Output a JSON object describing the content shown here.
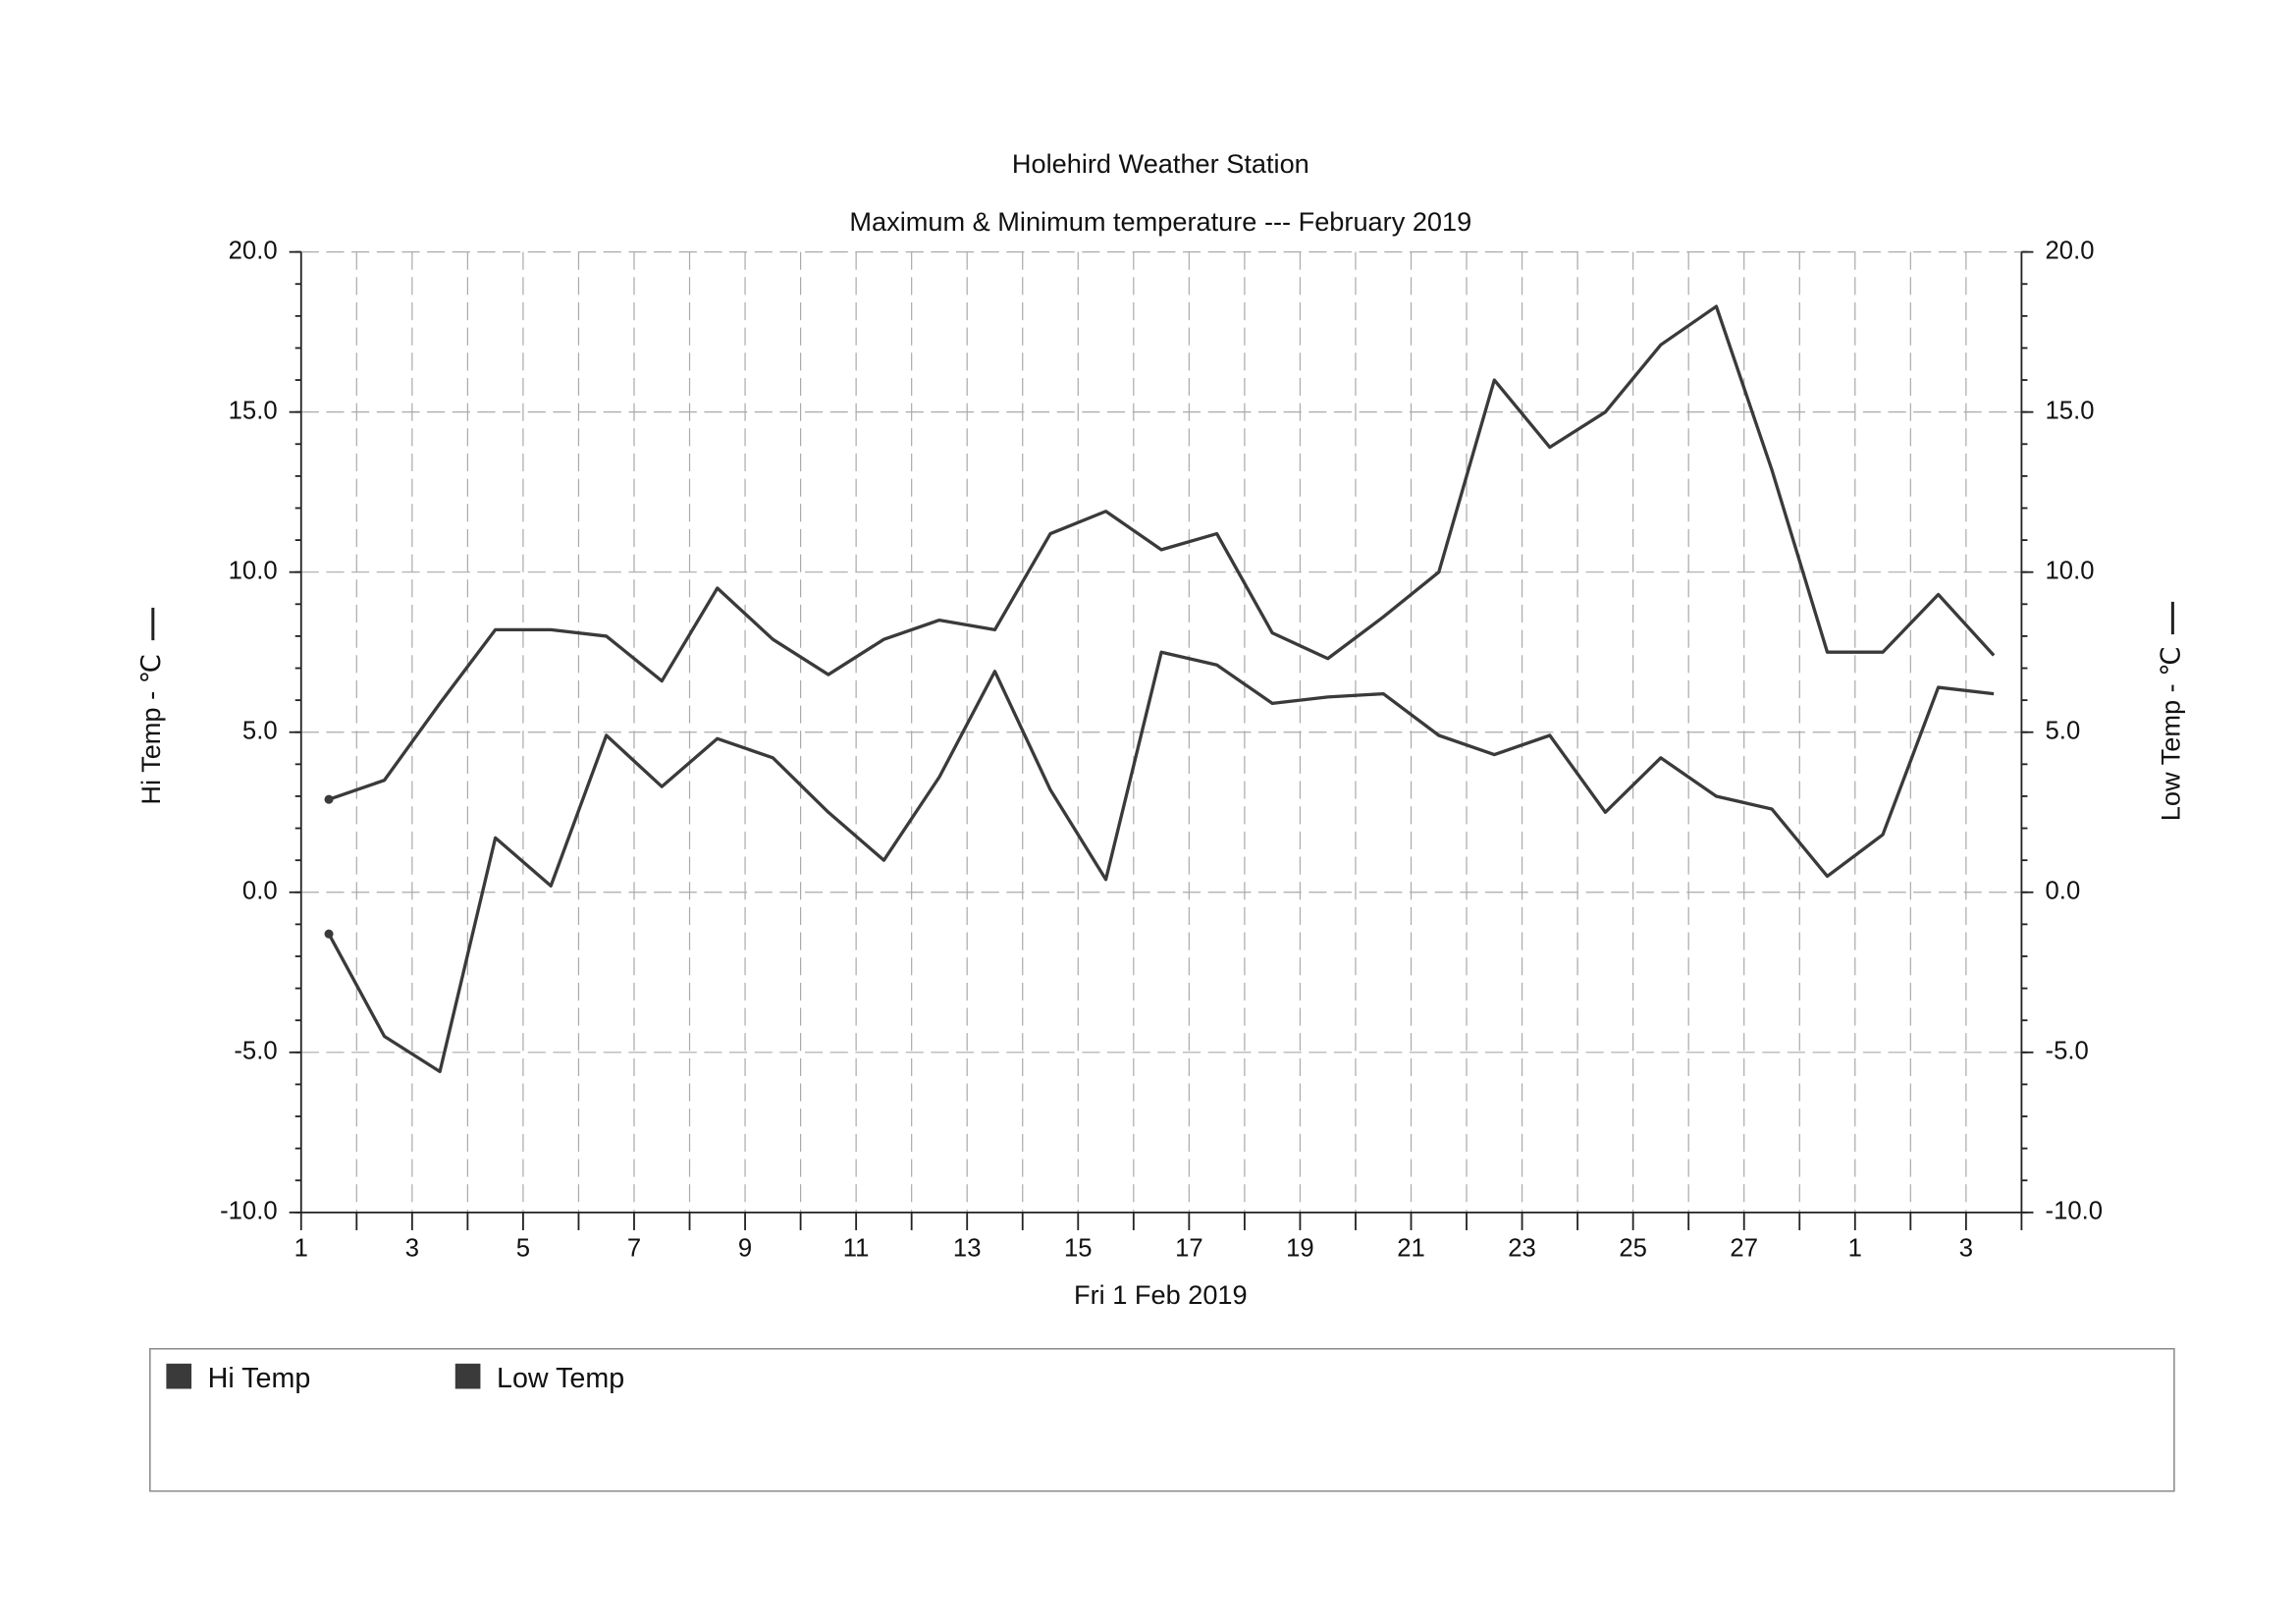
{
  "chart_data": {
    "type": "line",
    "title": "Holehird Weather Station",
    "subtitle": "Maximum & Minimum temperature --- February 2019",
    "xlabel": "Fri 1 Feb 2019",
    "ylabel": "Hi Temp - ℃",
    "y2label": "Low Temp - ℃",
    "x": [
      1.5,
      2.5,
      3.5,
      4.5,
      5.5,
      6.5,
      7.5,
      8.5,
      9.5,
      10.5,
      11.5,
      12.5,
      13.5,
      14.5,
      15.5,
      16.5,
      17.5,
      18.5,
      19.5,
      20.5,
      21.5,
      22.5,
      23.5,
      24.5,
      25.5,
      26.5,
      27.5,
      28.5,
      29.5,
      30.5,
      31.5
    ],
    "series": [
      {
        "name": "Hi Temp",
        "color": "#3a3a3a",
        "axis": "y",
        "values": [
          2.9,
          3.5,
          5.9,
          8.2,
          8.2,
          8.0,
          6.6,
          9.5,
          7.9,
          6.8,
          7.9,
          8.5,
          8.2,
          11.2,
          11.9,
          10.7,
          11.2,
          8.1,
          7.3,
          8.6,
          10.0,
          16.0,
          13.9,
          15.0,
          17.1,
          18.3,
          13.2,
          7.5,
          7.5,
          9.3,
          7.4
        ]
      },
      {
        "name": "Low Temp",
        "color": "#3a3a3a",
        "axis": "y2",
        "values": [
          -1.3,
          -4.5,
          -5.6,
          1.7,
          0.2,
          4.9,
          3.3,
          4.8,
          4.2,
          2.5,
          1.0,
          3.6,
          6.9,
          3.2,
          0.4,
          7.5,
          7.1,
          5.9,
          6.1,
          6.2,
          4.9,
          4.3,
          4.9,
          2.5,
          4.2,
          3.0,
          2.6,
          0.5,
          1.8,
          6.4,
          6.2
        ]
      }
    ],
    "xlim": [
      1,
      32
    ],
    "xticks": [
      1,
      3,
      5,
      7,
      9,
      11,
      13,
      15,
      17,
      19,
      21,
      23,
      25,
      27,
      {
        "value": 29,
        "label": "1"
      },
      {
        "value": 31,
        "label": "3"
      }
    ],
    "xticks_minor": [
      2,
      4,
      6,
      8,
      10,
      12,
      14,
      16,
      18,
      20,
      22,
      24,
      26,
      28,
      30,
      32
    ],
    "ylim": [
      -10,
      20
    ],
    "yticks": [
      {
        "value": -10,
        "label": "-10.0"
      },
      {
        "value": -5,
        "label": "-5.0"
      },
      {
        "value": 0,
        "label": "0.0"
      },
      {
        "value": 5,
        "label": "5.0"
      },
      {
        "value": 10,
        "label": "10.0"
      },
      {
        "value": 15,
        "label": "15.0"
      },
      {
        "value": 20,
        "label": "20.0"
      }
    ],
    "y2lim": [
      -10,
      20
    ],
    "y2ticks": [
      {
        "value": -10,
        "label": "-10.0"
      },
      {
        "value": -5,
        "label": "-5.0"
      },
      {
        "value": 0,
        "label": "0.0"
      },
      {
        "value": 5,
        "label": "5.0"
      },
      {
        "value": 10,
        "label": "10.0"
      },
      {
        "value": 15,
        "label": "15.0"
      },
      {
        "value": 20,
        "label": "20.0"
      }
    ],
    "ytick_minor_step": 1,
    "grid": true,
    "legend": "bottom"
  }
}
